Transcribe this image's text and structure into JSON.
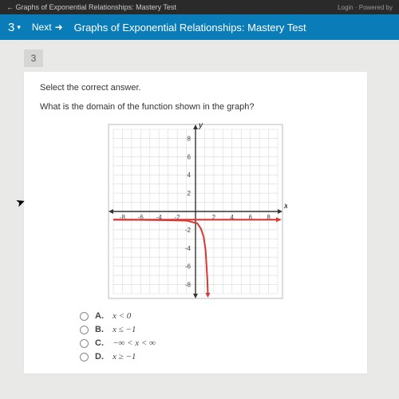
{
  "browser": {
    "tab_title": "←  Graphs of Exponential Relationships: Mastery Test",
    "login_text": "Login · Powered by"
  },
  "header": {
    "question_number": "3",
    "next_label": "Next",
    "page_title": "Graphs of Exponential Relationships: Mastery Test"
  },
  "question": {
    "badge": "3",
    "instruction": "Select the correct answer.",
    "prompt": "What is the domain of the function shown in the graph?"
  },
  "graph": {
    "x_label": "x",
    "y_label": "y",
    "xlim": [
      -9,
      9
    ],
    "ylim": [
      -9,
      9
    ],
    "xticks": [
      -8,
      -6,
      -4,
      -2,
      2,
      4,
      6,
      8
    ],
    "yticks": [
      -8,
      -6,
      -4,
      -2,
      2,
      4,
      6,
      8
    ],
    "grid_color": "#d9d9d9",
    "axis_color": "#333333",
    "tick_color": "#444444",
    "tick_fontsize": 8,
    "curve_color": "#d93634",
    "curve_width": 2,
    "curve_points": [
      [
        -9,
        -0.9
      ],
      [
        -6,
        -0.92
      ],
      [
        -3,
        -0.96
      ],
      [
        -1,
        -1.0
      ],
      [
        0.2,
        -1.3
      ],
      [
        0.6,
        -1.9
      ],
      [
        0.9,
        -2.8
      ],
      [
        1.1,
        -4.2
      ],
      [
        1.2,
        -5.8
      ],
      [
        1.3,
        -7.5
      ],
      [
        1.35,
        -9.0
      ]
    ],
    "arrow_end": [
      9,
      -0.9
    ]
  },
  "answers": {
    "options": [
      {
        "letter": "A.",
        "text": "x < 0"
      },
      {
        "letter": "B.",
        "text": "x ≤ −1"
      },
      {
        "letter": "C.",
        "text": "−∞ < x < ∞"
      },
      {
        "letter": "D.",
        "text": "x ≥ −1"
      }
    ]
  }
}
